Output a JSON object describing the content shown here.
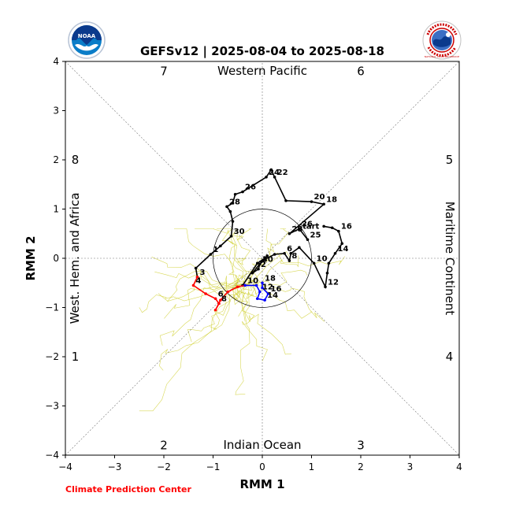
{
  "title": "GEFSv12 | 2025-08-04 to 2025-08-18",
  "credit": "Climate Prediction Center",
  "logos": {
    "left": {
      "name": "noaa-logo",
      "text": "NOAA"
    },
    "right": {
      "name": "nws-logo",
      "text": "NATIONAL WEATHER SERVICE"
    }
  },
  "colors": {
    "observed": "#000000",
    "forecast_early": "#ff0000",
    "forecast_late": "#0000ff",
    "ensemble": "#cccc22",
    "credit": "#ff0000",
    "noaa_blue": "#1a5fb4",
    "nws_blue": "#0b3a8c"
  },
  "chart_data": {
    "type": "line",
    "title": "GEFSv12 | 2025-08-04 to 2025-08-18",
    "xlabel": "RMM 1",
    "ylabel": "RMM 2",
    "xlim": [
      -4,
      4
    ],
    "ylim": [
      -4,
      4
    ],
    "xticks": [
      "−4",
      "−3",
      "−2",
      "−1",
      "0",
      "1",
      "2",
      "3",
      "4"
    ],
    "yticks": [
      "−4",
      "−3",
      "−2",
      "−1",
      "0",
      "1",
      "2",
      "3",
      "4"
    ],
    "unit_circle_radius": 1,
    "phase_numbers": [
      {
        "label": "1",
        "x": -3.8,
        "y": -2.0
      },
      {
        "label": "2",
        "x": -2.0,
        "y": -3.8
      },
      {
        "label": "3",
        "x": 2.0,
        "y": -3.8
      },
      {
        "label": "4",
        "x": 3.8,
        "y": -2.0
      },
      {
        "label": "5",
        "x": 3.8,
        "y": 2.0
      },
      {
        "label": "6",
        "x": 2.0,
        "y": 3.8
      },
      {
        "label": "7",
        "x": -2.0,
        "y": 3.8
      },
      {
        "label": "8",
        "x": -3.8,
        "y": 2.0
      }
    ],
    "regions": [
      {
        "label": "Western Pacific",
        "side": "top"
      },
      {
        "label": "Indian Ocean",
        "side": "bottom"
      },
      {
        "label": "West. Hem. and Africa",
        "side": "left"
      },
      {
        "label": "Maritime Continent",
        "side": "right"
      }
    ],
    "observed": {
      "start_label": "start",
      "points": [
        {
          "x": 1.25,
          "y": 0.65,
          "label": ""
        },
        {
          "x": 1.42,
          "y": 0.62,
          "label": ""
        },
        {
          "x": 1.55,
          "y": 0.55,
          "label": "16"
        },
        {
          "x": 1.62,
          "y": 0.3,
          "label": ""
        },
        {
          "x": 1.48,
          "y": 0.1,
          "label": "14"
        },
        {
          "x": 1.35,
          "y": -0.1,
          "label": ""
        },
        {
          "x": 1.32,
          "y": -0.3,
          "label": ""
        },
        {
          "x": 1.28,
          "y": -0.58,
          "label": "12"
        },
        {
          "x": 1.05,
          "y": -0.1,
          "label": "10"
        },
        {
          "x": 0.75,
          "y": 0.22,
          "label": ""
        },
        {
          "x": 0.58,
          "y": 0.1,
          "label": ""
        },
        {
          "x": 0.55,
          "y": -0.05,
          "label": "8"
        },
        {
          "x": 0.45,
          "y": 0.1,
          "label": "6"
        },
        {
          "x": 0.25,
          "y": 0.08,
          "label": ""
        },
        {
          "x": 0.05,
          "y": -0.02,
          "label": ""
        },
        {
          "x": -0.05,
          "y": -0.12,
          "label": "30"
        },
        {
          "x": -0.08,
          "y": -0.22,
          "label": "2"
        },
        {
          "x": -0.2,
          "y": -0.3,
          "label": ""
        },
        {
          "x": 0.0,
          "y": -0.05,
          "label": ""
        },
        {
          "x": 0.1,
          "y": 0.05,
          "label": ""
        },
        {
          "x": 0.05,
          "y": 0.0,
          "label": ""
        },
        {
          "x": -0.1,
          "y": -0.1,
          "label": ""
        },
        {
          "x": -0.4,
          "y": -0.55,
          "label": ""
        }
      ]
    },
    "earlier_track": {
      "points": [
        {
          "x": 0.92,
          "y": 0.38,
          "label": "25"
        },
        {
          "x": 0.75,
          "y": 0.6,
          "label": "26"
        },
        {
          "x": 0.55,
          "y": 0.5,
          "label": "28"
        },
        {
          "x": 1.25,
          "y": 1.1,
          "label": "18"
        },
        {
          "x": 1.0,
          "y": 1.15,
          "label": "20"
        },
        {
          "x": 0.48,
          "y": 1.17,
          "label": ""
        },
        {
          "x": 0.25,
          "y": 1.65,
          "label": "22"
        },
        {
          "x": 0.18,
          "y": 1.8,
          "label": ""
        },
        {
          "x": 0.08,
          "y": 1.65,
          "label": "24"
        },
        {
          "x": -0.4,
          "y": 1.35,
          "label": "26"
        },
        {
          "x": -0.55,
          "y": 1.3,
          "label": ""
        },
        {
          "x": -0.6,
          "y": 1.12,
          "label": ""
        },
        {
          "x": -0.72,
          "y": 1.05,
          "label": "28"
        },
        {
          "x": -0.65,
          "y": 0.95,
          "label": ""
        },
        {
          "x": -0.6,
          "y": 0.75,
          "label": ""
        },
        {
          "x": -0.63,
          "y": 0.45,
          "label": "30"
        },
        {
          "x": -0.85,
          "y": 0.25,
          "label": ""
        },
        {
          "x": -1.05,
          "y": 0.08,
          "label": "1"
        },
        {
          "x": -1.35,
          "y": -0.2,
          "label": ""
        },
        {
          "x": -1.32,
          "y": -0.38,
          "label": "3"
        }
      ]
    },
    "forecast_mean": {
      "red_points": [
        {
          "x": -1.32,
          "y": -0.38,
          "label": ""
        },
        {
          "x": -1.4,
          "y": -0.55,
          "label": "4"
        },
        {
          "x": -1.15,
          "y": -0.72,
          "label": ""
        },
        {
          "x": -0.95,
          "y": -0.82,
          "label": "6"
        },
        {
          "x": -0.88,
          "y": -0.92,
          "label": "8"
        },
        {
          "x": -0.95,
          "y": -1.05,
          "label": ""
        },
        {
          "x": -0.85,
          "y": -0.85,
          "label": ""
        },
        {
          "x": -0.7,
          "y": -0.68,
          "label": ""
        },
        {
          "x": -0.5,
          "y": -0.58,
          "label": ""
        },
        {
          "x": -0.35,
          "y": -0.55,
          "label": ""
        }
      ],
      "blue_points": [
        {
          "x": -0.35,
          "y": -0.55,
          "label": "10"
        },
        {
          "x": -0.12,
          "y": -0.55,
          "label": ""
        },
        {
          "x": -0.05,
          "y": -0.68,
          "label": "12"
        },
        {
          "x": -0.1,
          "y": -0.82,
          "label": ""
        },
        {
          "x": 0.05,
          "y": -0.85,
          "label": "14"
        },
        {
          "x": 0.12,
          "y": -0.72,
          "label": "16"
        },
        {
          "x": 0.0,
          "y": -0.6,
          "label": ""
        },
        {
          "x": 0.0,
          "y": -0.5,
          "label": "18"
        }
      ]
    }
  }
}
